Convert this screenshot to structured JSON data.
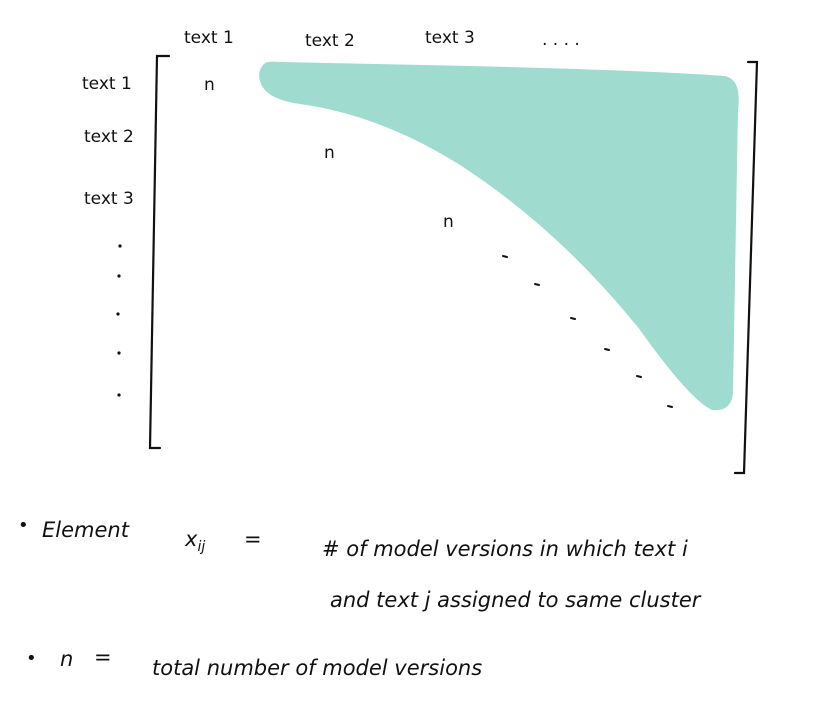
{
  "matrix": {
    "columns": [
      "text 1",
      "text 2",
      "text 3",
      ". . . ."
    ],
    "rows": [
      "text 1",
      "text 2",
      "text 3"
    ],
    "diagonal_symbol": "n",
    "fill_color": "#9fdccf"
  },
  "notes": {
    "bullet": "•",
    "element": {
      "label": "Element",
      "variable_base": "x",
      "variable_sub": "ij",
      "equals": "=",
      "line1": "# of   model versions   in which   text i",
      "line2": "and  text j  assigned   to  same cluster"
    },
    "n_def": {
      "symbol": "n",
      "equals": "=",
      "text": "total   number  of   model      versions"
    }
  }
}
